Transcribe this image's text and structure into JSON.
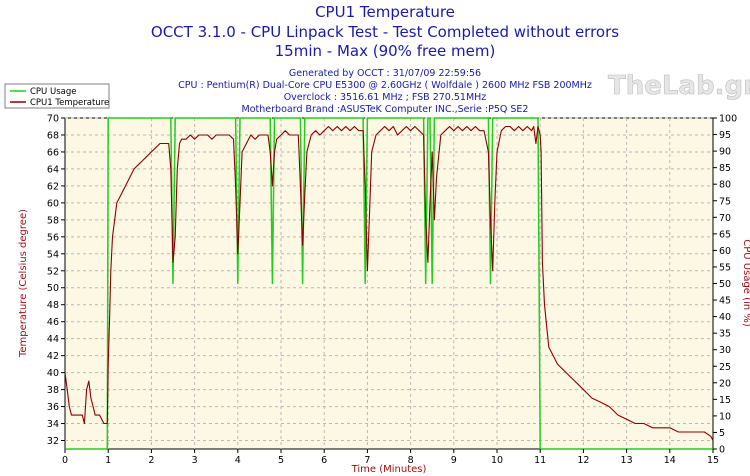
{
  "chart_data": {
    "type": "line",
    "title": "CPU1 Temperature",
    "subtitle_1": "OCCT 3.1.0 - CPU Linpack Test - Test Completed without errors",
    "subtitle_2": "15min - Max (90% free mem)",
    "info_lines": [
      "Generated by OCCT : 31/07/09 22:59:56",
      "CPU : Pentium(R) Dual-Core CPU E5300 @ 2.60GHz ( Wolfdale ) 2600 MHz FSB 200MHz",
      "Overclock : 3516.61 MHz ; FSB 270.51MHz",
      "Motherboard Brand :ASUSTeK Computer INC.,Serie :P5Q SE2"
    ],
    "watermark": "TheLab.gr",
    "xlabel": "Time (Minutes)",
    "ylabel": "Temperature (Celsius degree)",
    "y2label": "CPU Usage (in %)",
    "xlim": [
      0,
      15
    ],
    "ylim": [
      31,
      70
    ],
    "y2lim": [
      0,
      100
    ],
    "x_ticks": [
      0,
      1,
      2,
      3,
      4,
      5,
      6,
      7,
      8,
      9,
      10,
      11,
      12,
      13,
      14,
      15
    ],
    "y_ticks": [
      32,
      34,
      36,
      38,
      40,
      42,
      44,
      46,
      48,
      50,
      52,
      54,
      56,
      58,
      60,
      62,
      64,
      66,
      68,
      70
    ],
    "y2_ticks": [
      0,
      5,
      10,
      15,
      20,
      25,
      30,
      35,
      40,
      45,
      50,
      55,
      60,
      65,
      70,
      75,
      80,
      85,
      90,
      95,
      100
    ],
    "grid": true,
    "legend_position": "top-left",
    "series": [
      {
        "name": "CPU Usage",
        "axis": "right",
        "color": "#22cc22",
        "x": [
          0,
          0.98,
          1.0,
          1.02,
          2.45,
          2.5,
          2.55,
          2.6,
          3.95,
          4.0,
          4.05,
          4.75,
          4.8,
          4.85,
          5.45,
          5.5,
          5.55,
          6.9,
          6.95,
          7.0,
          8.3,
          8.35,
          8.4,
          8.45,
          8.5,
          8.55,
          9.8,
          9.85,
          9.9,
          10.95,
          11.0,
          11.05,
          15
        ],
        "y": [
          0,
          0,
          100,
          100,
          100,
          50,
          100,
          100,
          100,
          50,
          100,
          100,
          50,
          100,
          100,
          50,
          100,
          100,
          50,
          100,
          100,
          50,
          100,
          100,
          50,
          100,
          100,
          50,
          100,
          100,
          0,
          0,
          0
        ]
      },
      {
        "name": "CPU1 Temperature",
        "axis": "left",
        "color": "#8b0000",
        "x": [
          0,
          0.05,
          0.1,
          0.15,
          0.2,
          0.3,
          0.4,
          0.45,
          0.5,
          0.55,
          0.6,
          0.65,
          0.7,
          0.8,
          0.9,
          0.98,
          1.0,
          1.03,
          1.06,
          1.1,
          1.15,
          1.2,
          1.3,
          1.4,
          1.5,
          1.6,
          1.7,
          1.8,
          1.9,
          2.0,
          2.1,
          2.2,
          2.3,
          2.4,
          2.45,
          2.5,
          2.55,
          2.6,
          2.65,
          2.7,
          2.8,
          2.9,
          3.0,
          3.1,
          3.2,
          3.3,
          3.4,
          3.5,
          3.6,
          3.7,
          3.8,
          3.9,
          3.95,
          4.0,
          4.05,
          4.1,
          4.2,
          4.3,
          4.4,
          4.5,
          4.6,
          4.7,
          4.75,
          4.8,
          4.85,
          4.9,
          5.0,
          5.1,
          5.2,
          5.3,
          5.4,
          5.45,
          5.5,
          5.55,
          5.6,
          5.7,
          5.8,
          5.9,
          6.0,
          6.1,
          6.2,
          6.3,
          6.4,
          6.5,
          6.6,
          6.7,
          6.8,
          6.9,
          6.95,
          7.0,
          7.05,
          7.1,
          7.2,
          7.3,
          7.4,
          7.5,
          7.6,
          7.7,
          7.8,
          7.9,
          8.0,
          8.1,
          8.2,
          8.3,
          8.35,
          8.4,
          8.45,
          8.5,
          8.55,
          8.6,
          8.7,
          8.8,
          8.9,
          9.0,
          9.1,
          9.2,
          9.3,
          9.4,
          9.5,
          9.6,
          9.7,
          9.8,
          9.85,
          9.9,
          9.95,
          10.0,
          10.1,
          10.2,
          10.3,
          10.4,
          10.5,
          10.6,
          10.7,
          10.8,
          10.85,
          10.9,
          10.95,
          11.0,
          11.02,
          11.05,
          11.1,
          11.2,
          11.3,
          11.4,
          11.5,
          11.6,
          11.7,
          11.8,
          11.9,
          12.0,
          12.2,
          12.4,
          12.6,
          12.8,
          13.0,
          13.2,
          13.4,
          13.6,
          13.8,
          14.0,
          14.2,
          14.4,
          14.6,
          14.8,
          14.95,
          15.0
        ],
        "y": [
          40,
          38,
          36,
          35,
          35,
          35,
          35,
          34,
          38,
          39,
          37,
          36,
          35,
          35,
          34,
          34,
          41,
          46,
          52,
          56,
          58,
          60,
          61,
          62,
          63,
          64,
          64.5,
          65,
          65.5,
          66,
          66.5,
          67,
          67,
          67,
          64,
          53,
          56,
          64,
          67,
          67.5,
          67.5,
          68,
          67.5,
          68,
          68,
          68,
          67.5,
          68,
          68,
          68,
          68,
          67.5,
          62,
          54,
          60,
          66,
          67,
          68,
          67.5,
          68,
          68,
          68,
          66,
          62,
          66,
          67.5,
          68,
          68.5,
          68,
          68,
          68,
          62,
          55,
          61,
          66,
          68,
          68.5,
          68,
          68.5,
          69,
          68.5,
          69,
          68.5,
          69,
          68.5,
          69,
          68.5,
          68.5,
          62,
          52,
          59,
          66,
          68,
          68.5,
          69,
          68.5,
          69,
          68,
          68.5,
          69,
          68.5,
          69,
          68.5,
          68,
          58,
          53,
          60,
          66,
          58,
          63,
          68,
          68.5,
          69,
          68.5,
          69,
          68.5,
          69,
          68.5,
          69,
          68.5,
          68.5,
          66,
          58,
          52,
          60,
          66,
          68.5,
          69,
          69,
          68.5,
          69,
          68.5,
          69,
          68.5,
          69,
          67,
          69,
          68,
          66,
          53,
          48,
          43,
          42,
          41,
          40.5,
          40,
          39.5,
          39,
          38.5,
          38,
          37,
          36.5,
          36,
          35,
          34.5,
          34,
          34,
          33.5,
          33.5,
          33.5,
          33,
          33,
          33,
          33,
          32.5,
          32
        ]
      }
    ]
  }
}
